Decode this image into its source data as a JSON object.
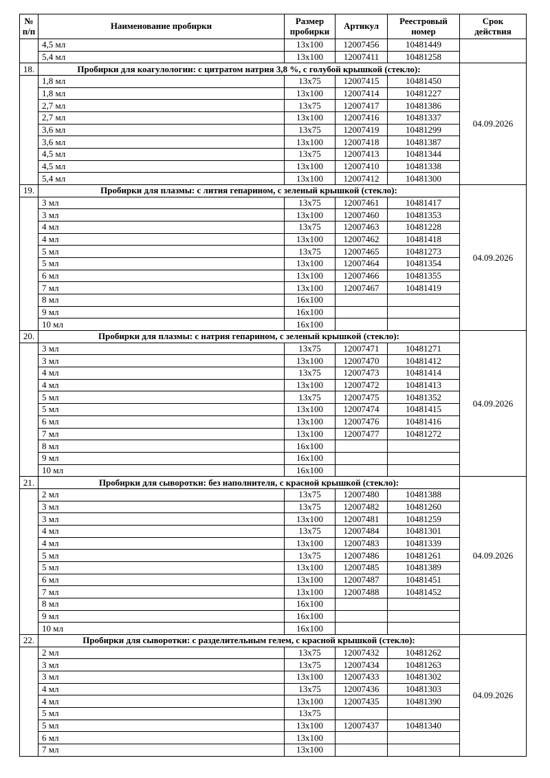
{
  "table": {
    "header": {
      "num": "№\nп/п",
      "name": "Наименование пробирки",
      "size": "Размер\nпробирки",
      "article": "Артикул",
      "registry": "Реестровый\nномер",
      "validity": "Срок\nдействия"
    },
    "sections": [
      {
        "num": "",
        "title": null,
        "validity": "",
        "rows": [
          [
            "4,5 мл",
            "13x100",
            "12007456",
            "10481449"
          ],
          [
            "5,4 мл",
            "13x100",
            "12007411",
            "10481258"
          ]
        ]
      },
      {
        "num": "18.",
        "title": "Пробирки для коагулологии: с цитратом натрия 3,8 %, с голубой крышкой (стекло):",
        "validity": "04.09.2026",
        "rows": [
          [
            "1,8 мл",
            "13x75",
            "12007415",
            "10481450"
          ],
          [
            "1,8 мл",
            "13x100",
            "12007414",
            "10481227"
          ],
          [
            "2,7 мл",
            "13x75",
            "12007417",
            "10481386"
          ],
          [
            "2,7 мл",
            "13x100",
            "12007416",
            "10481337"
          ],
          [
            "3,6 мл",
            "13x75",
            "12007419",
            "10481299"
          ],
          [
            "3,6 мл",
            "13x100",
            "12007418",
            "10481387"
          ],
          [
            "4,5 мл",
            "13x75",
            "12007413",
            "10481344"
          ],
          [
            "4,5 мл",
            "13x100",
            "12007410",
            "10481338"
          ],
          [
            "5,4 мл",
            "13x100",
            "12007412",
            "10481300"
          ]
        ]
      },
      {
        "num": "19.",
        "title": "Пробирки для плазмы: с лития гепарином, с зеленый крышкой (стекло):",
        "validity": "04.09.2026",
        "rows": [
          [
            "3 мл",
            "13x75",
            "12007461",
            "10481417"
          ],
          [
            "3 мл",
            "13x100",
            "12007460",
            "10481353"
          ],
          [
            "4 мл",
            "13x75",
            "12007463",
            "10481228"
          ],
          [
            "4 мл",
            "13x100",
            "12007462",
            "10481418"
          ],
          [
            "5 мл",
            "13x75",
            "12007465",
            "10481273"
          ],
          [
            "5 мл",
            "13x100",
            "12007464",
            "10481354"
          ],
          [
            "6 мл",
            "13x100",
            "12007466",
            "10481355"
          ],
          [
            "7 мл",
            "13x100",
            "12007467",
            "10481419"
          ],
          [
            "8 мл",
            "16x100",
            "",
            ""
          ],
          [
            "9 мл",
            "16x100",
            "",
            ""
          ],
          [
            "10 мл",
            "16x100",
            "",
            ""
          ]
        ]
      },
      {
        "num": "20.",
        "title": "Пробирки для плазмы: с натрия гепарином, с зеленый крышкой (стекло):",
        "validity": "04.09.2026",
        "rows": [
          [
            "3 мл",
            "13x75",
            "12007471",
            "10481271"
          ],
          [
            "3 мл",
            "13x100",
            "12007470",
            "10481412"
          ],
          [
            "4 мл",
            "13x75",
            "12007473",
            "10481414"
          ],
          [
            "4 мл",
            "13x100",
            "12007472",
            "10481413"
          ],
          [
            "5 мл",
            "13x75",
            "12007475",
            "10481352"
          ],
          [
            "5 мл",
            "13x100",
            "12007474",
            "10481415"
          ],
          [
            "6 мл",
            "13x100",
            "12007476",
            "10481416"
          ],
          [
            "7 мл",
            "13x100",
            "12007477",
            "10481272"
          ],
          [
            "8 мл",
            "16x100",
            "",
            ""
          ],
          [
            "9 мл",
            "16x100",
            "",
            ""
          ],
          [
            "10 мл",
            "16x100",
            "",
            ""
          ]
        ]
      },
      {
        "num": "21.",
        "title": "Пробирки для сыворотки: без наполнителя, с красной крышкой (стекло):",
        "validity": "04.09.2026",
        "rows": [
          [
            "2 мл",
            "13x75",
            "12007480",
            "10481388"
          ],
          [
            "3 мл",
            "13x75",
            "12007482",
            "10481260"
          ],
          [
            "3 мл",
            "13x100",
            "12007481",
            "10481259"
          ],
          [
            "4 мл",
            "13x75",
            "12007484",
            "10481301"
          ],
          [
            "4 мл",
            "13x100",
            "12007483",
            "10481339"
          ],
          [
            "5 мл",
            "13x75",
            "12007486",
            "10481261"
          ],
          [
            "5 мл",
            "13x100",
            "12007485",
            "10481389"
          ],
          [
            "6 мл",
            "13x100",
            "12007487",
            "10481451"
          ],
          [
            "7 мл",
            "13x100",
            "12007488",
            "10481452"
          ],
          [
            "8 мл",
            "16x100",
            "",
            ""
          ],
          [
            "9 мл",
            "16x100",
            "",
            ""
          ],
          [
            "10 мл",
            "16x100",
            "",
            ""
          ]
        ]
      },
      {
        "num": "22.",
        "title": "Пробирки для сыворотки: с разделительным гелем, с красной крышкой (стекло):",
        "validity": "04.09.2026",
        "rows": [
          [
            "2 мл",
            "13x75",
            "12007432",
            "10481262"
          ],
          [
            "3 мл",
            "13x75",
            "12007434",
            "10481263"
          ],
          [
            "3 мл",
            "13x100",
            "12007433",
            "10481302"
          ],
          [
            "4 мл",
            "13x75",
            "12007436",
            "10481303"
          ],
          [
            "4 мл",
            "13x100",
            "12007435",
            "10481390"
          ],
          [
            "5 мл",
            "13x75",
            "",
            ""
          ],
          [
            "5 мл",
            "13x100",
            "12007437",
            "10481340"
          ],
          [
            "6 мл",
            "13x100",
            "",
            ""
          ],
          [
            "7 мл",
            "13x100",
            "",
            ""
          ]
        ]
      }
    ]
  }
}
